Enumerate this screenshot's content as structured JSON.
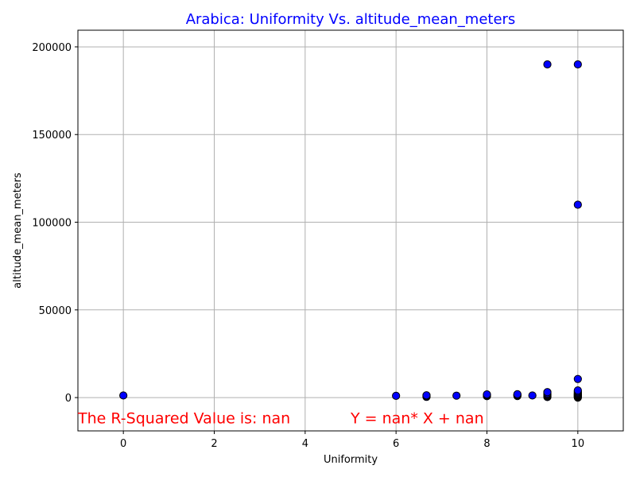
{
  "chart_data": {
    "type": "scatter",
    "title": "Arabica: Uniformity Vs. altitude_mean_meters",
    "xlabel": "Uniformity",
    "ylabel": "altitude_mean_meters",
    "xlim": [
      -1,
      11
    ],
    "ylim": [
      -19000,
      209500
    ],
    "xticks": [
      0,
      2,
      4,
      6,
      8,
      10
    ],
    "xtick_labels": [
      "0",
      "2",
      "4",
      "6",
      "8",
      "10"
    ],
    "yticks": [
      0,
      50000,
      100000,
      150000,
      200000
    ],
    "ytick_labels": [
      "0",
      "50000",
      "100000",
      "150000",
      "200000"
    ],
    "grid": true,
    "colors": {
      "title": "#0000ff",
      "marker_fill": "#0000ff",
      "marker_edge": "#000000",
      "annotation": "#ff0000",
      "grid": "#b0b0b0"
    },
    "annotations": [
      {
        "text": "The R-Squared Value is: nan",
        "x": -1,
        "y": -11500
      },
      {
        "text": "Y = nan* X + nan",
        "x": 5,
        "y": -11500
      }
    ],
    "points": [
      [
        0,
        1200
      ],
      [
        6,
        1000
      ],
      [
        6.67,
        400
      ],
      [
        6.67,
        900
      ],
      [
        6.67,
        1300
      ],
      [
        7.33,
        1100
      ],
      [
        8,
        800
      ],
      [
        8,
        1200
      ],
      [
        8,
        1500
      ],
      [
        8,
        1800
      ],
      [
        8.67,
        900
      ],
      [
        8.67,
        1300
      ],
      [
        8.67,
        1600
      ],
      [
        8.67,
        1900
      ],
      [
        9,
        1200
      ],
      [
        9.33,
        300
      ],
      [
        9.33,
        700
      ],
      [
        9.33,
        1100
      ],
      [
        9.33,
        1500
      ],
      [
        9.33,
        1900
      ],
      [
        9.33,
        2400
      ],
      [
        9.33,
        3100
      ],
      [
        9.33,
        190000
      ],
      [
        10,
        0
      ],
      [
        10,
        300
      ],
      [
        10,
        600
      ],
      [
        10,
        900
      ],
      [
        10,
        1200
      ],
      [
        10,
        1500
      ],
      [
        10,
        1800
      ],
      [
        10,
        2100
      ],
      [
        10,
        2500
      ],
      [
        10,
        3000
      ],
      [
        10,
        3500
      ],
      [
        10,
        4100
      ],
      [
        10,
        10600
      ],
      [
        10,
        110000
      ],
      [
        10,
        190000
      ]
    ]
  }
}
